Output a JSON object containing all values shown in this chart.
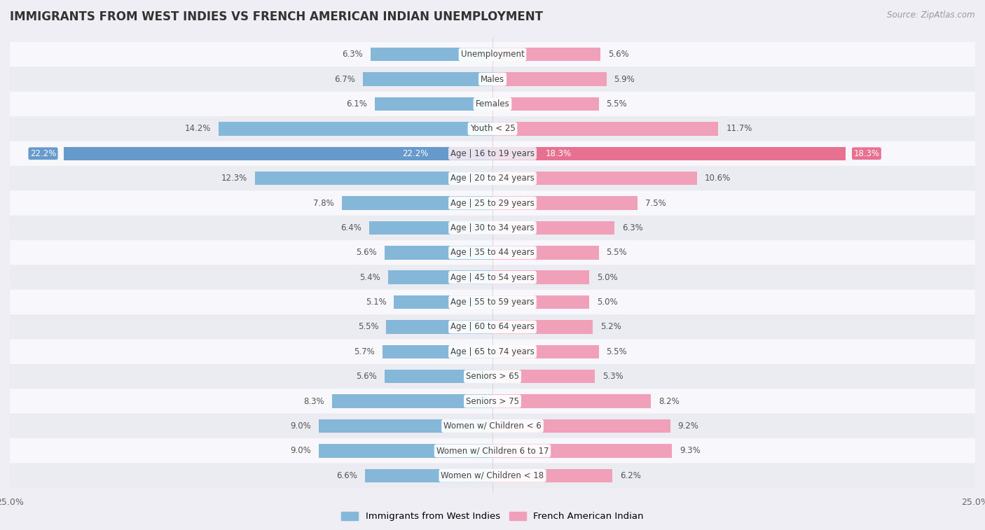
{
  "title": "IMMIGRANTS FROM WEST INDIES VS FRENCH AMERICAN INDIAN UNEMPLOYMENT",
  "source": "Source: ZipAtlas.com",
  "categories": [
    "Unemployment",
    "Males",
    "Females",
    "Youth < 25",
    "Age | 16 to 19 years",
    "Age | 20 to 24 years",
    "Age | 25 to 29 years",
    "Age | 30 to 34 years",
    "Age | 35 to 44 years",
    "Age | 45 to 54 years",
    "Age | 55 to 59 years",
    "Age | 60 to 64 years",
    "Age | 65 to 74 years",
    "Seniors > 65",
    "Seniors > 75",
    "Women w/ Children < 6",
    "Women w/ Children 6 to 17",
    "Women w/ Children < 18"
  ],
  "west_indies": [
    6.3,
    6.7,
    6.1,
    14.2,
    22.2,
    12.3,
    7.8,
    6.4,
    5.6,
    5.4,
    5.1,
    5.5,
    5.7,
    5.6,
    8.3,
    9.0,
    9.0,
    6.6
  ],
  "french_american": [
    5.6,
    5.9,
    5.5,
    11.7,
    18.3,
    10.6,
    7.5,
    6.3,
    5.5,
    5.0,
    5.0,
    5.2,
    5.5,
    5.3,
    8.2,
    9.2,
    9.3,
    6.2
  ],
  "west_indies_color": "#85b8d8",
  "french_american_color": "#f0a0b8",
  "west_indies_highlight_color": "#6699cc",
  "french_american_highlight_color": "#e87090",
  "background_color": "#eeeef4",
  "row_color_even": "#f8f8fc",
  "row_color_odd": "#ebebf2",
  "max_val": 25.0,
  "bar_height": 0.55,
  "legend_label_west": "Immigrants from West Indies",
  "legend_label_french": "French American Indian",
  "title_fontsize": 12,
  "source_fontsize": 8.5,
  "label_fontsize": 8.5,
  "cat_fontsize": 8.5,
  "highlight_idx": 4
}
